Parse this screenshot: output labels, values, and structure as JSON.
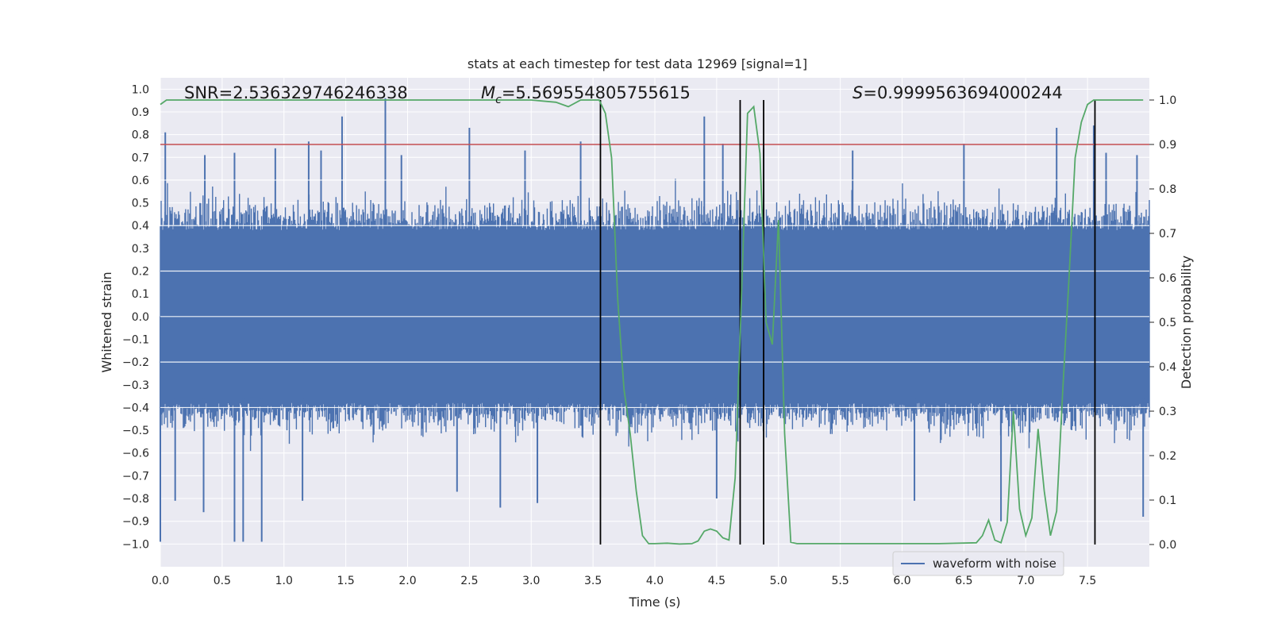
{
  "chart_data": {
    "type": "line",
    "title": "stats at each timestep for test data 12969 [signal=1]",
    "xlabel": "Time (s)",
    "ylabel_left": "Whitened strain",
    "ylabel_right": "Detection probability",
    "xlim": [
      0,
      8
    ],
    "ylim_left": [
      -1.1,
      1.05
    ],
    "ylim_right": [
      -0.05,
      1.05
    ],
    "x_ticks": [
      "0.0",
      "0.5",
      "1.0",
      "1.5",
      "2.0",
      "2.5",
      "3.0",
      "3.5",
      "4.0",
      "4.5",
      "5.0",
      "5.5",
      "6.0",
      "6.5",
      "7.0",
      "7.5"
    ],
    "y_ticks_left": [
      "1.0",
      "0.9",
      "0.8",
      "0.7",
      "0.6",
      "0.5",
      "0.4",
      "0.3",
      "0.2",
      "0.1",
      "0.0",
      "-0.1",
      "-0.2",
      "-0.3",
      "-0.4",
      "-0.5",
      "-0.6",
      "-0.7",
      "-0.8",
      "-0.9",
      "-1.0"
    ],
    "y_ticks_right": [
      "1.0",
      "0.9",
      "0.8",
      "0.7",
      "0.6",
      "0.5",
      "0.4",
      "0.3",
      "0.2",
      "0.1",
      "0.0"
    ],
    "annotations": {
      "snr": "SNR=2.536329746246338",
      "mc_symbol": "M",
      "mc_sub": "c",
      "mc_value": "=5.569554805755615",
      "s_symbol": "S",
      "s_value": "=0.9999563694000244"
    },
    "threshold": 0.9,
    "vertical_lines_s": [
      3.56,
      4.69,
      4.88,
      7.56
    ],
    "detection_probability": {
      "name": "Detection probability",
      "x": [
        0.0,
        0.05,
        0.1,
        0.5,
        1.0,
        1.5,
        2.0,
        2.5,
        3.0,
        3.2,
        3.3,
        3.4,
        3.5,
        3.55,
        3.6,
        3.65,
        3.7,
        3.75,
        3.8,
        3.85,
        3.9,
        3.95,
        4.0,
        4.1,
        4.2,
        4.3,
        4.35,
        4.4,
        4.45,
        4.5,
        4.55,
        4.6,
        4.65,
        4.7,
        4.75,
        4.8,
        4.85,
        4.9,
        4.95,
        5.0,
        5.05,
        5.1,
        5.15,
        5.2,
        5.3,
        5.5,
        5.8,
        6.0,
        6.3,
        6.6,
        6.65,
        6.7,
        6.75,
        6.8,
        6.85,
        6.9,
        6.95,
        7.0,
        7.05,
        7.1,
        7.15,
        7.2,
        7.25,
        7.3,
        7.35,
        7.4,
        7.45,
        7.5,
        7.55,
        7.6,
        7.65,
        7.7,
        7.8,
        7.95
      ],
      "y": [
        0.99,
        1.0,
        1.0,
        1.0,
        1.0,
        1.0,
        1.0,
        1.0,
        1.0,
        0.995,
        0.985,
        1.0,
        1.0,
        1.0,
        0.97,
        0.87,
        0.55,
        0.35,
        0.25,
        0.12,
        0.02,
        0.002,
        0.002,
        0.003,
        0.001,
        0.002,
        0.008,
        0.03,
        0.035,
        0.03,
        0.015,
        0.01,
        0.15,
        0.55,
        0.97,
        0.985,
        0.88,
        0.5,
        0.45,
        0.73,
        0.25,
        0.005,
        0.002,
        0.002,
        0.002,
        0.002,
        0.002,
        0.002,
        0.002,
        0.004,
        0.02,
        0.055,
        0.01,
        0.004,
        0.05,
        0.3,
        0.08,
        0.02,
        0.06,
        0.26,
        0.12,
        0.02,
        0.075,
        0.35,
        0.6,
        0.87,
        0.95,
        0.99,
        1.0,
        1.0,
        1.0,
        1.0,
        1.0,
        1.0
      ]
    },
    "waveform": {
      "name": "waveform with noise",
      "description_stats": {
        "core_band": [
          -0.35,
          0.35
        ],
        "typical_extremes": [
          -0.6,
          0.6
        ]
      },
      "spikes": [
        {
          "x": 0.04,
          "y": 0.81
        },
        {
          "x": 0.36,
          "y": 0.71
        },
        {
          "x": 0.6,
          "y": 0.72
        },
        {
          "x": 0.93,
          "y": 0.74
        },
        {
          "x": 1.2,
          "y": 0.77
        },
        {
          "x": 1.3,
          "y": 0.73
        },
        {
          "x": 1.47,
          "y": 0.88
        },
        {
          "x": 1.82,
          "y": 0.96
        },
        {
          "x": 1.95,
          "y": 0.71
        },
        {
          "x": 2.5,
          "y": 0.83
        },
        {
          "x": 2.95,
          "y": 0.73
        },
        {
          "x": 3.4,
          "y": 0.77
        },
        {
          "x": 4.4,
          "y": 0.88
        },
        {
          "x": 4.55,
          "y": 0.76
        },
        {
          "x": 4.88,
          "y": 0.74
        },
        {
          "x": 5.6,
          "y": 0.73
        },
        {
          "x": 6.5,
          "y": 0.76
        },
        {
          "x": 7.25,
          "y": 0.83
        },
        {
          "x": 7.55,
          "y": 0.84
        },
        {
          "x": 7.65,
          "y": 0.72
        },
        {
          "x": 7.9,
          "y": 0.71
        },
        {
          "x": 0.0,
          "y": -0.99
        },
        {
          "x": 0.12,
          "y": -0.81
        },
        {
          "x": 0.35,
          "y": -0.86
        },
        {
          "x": 0.6,
          "y": -0.99
        },
        {
          "x": 0.67,
          "y": -0.99
        },
        {
          "x": 0.82,
          "y": -0.99
        },
        {
          "x": 1.15,
          "y": -0.81
        },
        {
          "x": 2.4,
          "y": -0.77
        },
        {
          "x": 2.75,
          "y": -0.84
        },
        {
          "x": 3.05,
          "y": -0.82
        },
        {
          "x": 4.5,
          "y": -0.8
        },
        {
          "x": 6.1,
          "y": -0.81
        },
        {
          "x": 6.8,
          "y": -0.9
        },
        {
          "x": 7.95,
          "y": -0.88
        }
      ]
    }
  },
  "colors": {
    "plot_bg": "#eaeaf2",
    "grid": "#ffffff",
    "waveform": "#4c72b0",
    "probability": "#55a868",
    "threshold": "#c44e52",
    "vlines": "#000000"
  },
  "legend": {
    "label": "waveform with noise"
  }
}
